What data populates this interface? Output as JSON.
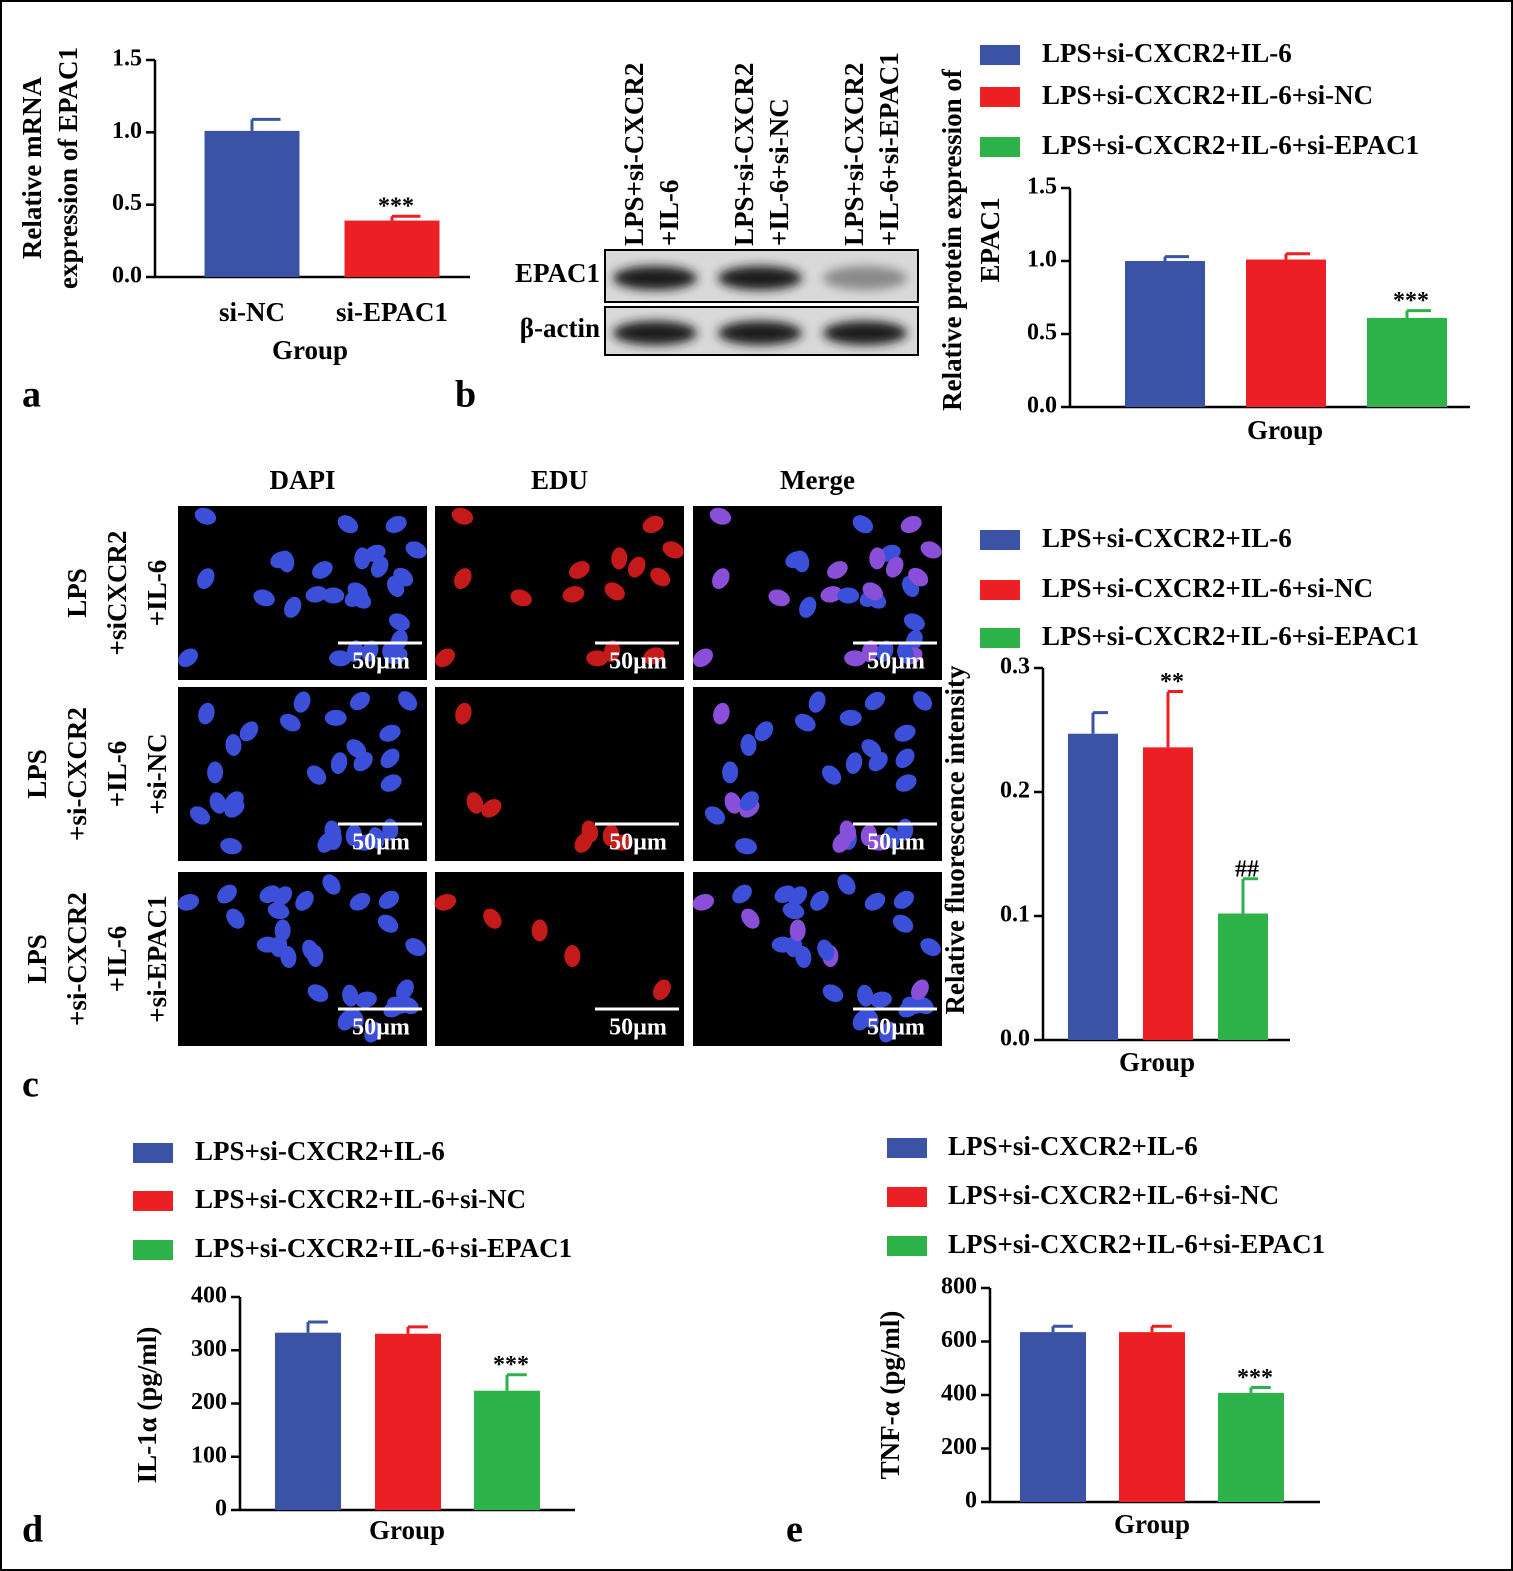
{
  "panel_labels": [
    "a",
    "b",
    "c",
    "d",
    "e"
  ],
  "blot": {
    "lanes": [
      [
        "LPS+si-CXCR2",
        "+IL-6"
      ],
      [
        "LPS+si-CXCR2",
        "+IL-6+si-NC"
      ],
      [
        "LPS+si-CXCR2",
        "+IL-6+si-EPAC1"
      ]
    ],
    "rows": [
      "EPAC1",
      "β-actin"
    ]
  },
  "micrographs": {
    "columns": [
      "DAPI",
      "EDU",
      "Merge"
    ],
    "rows": [
      [
        "LPS",
        "+siCXCR2",
        "+IL-6"
      ],
      [
        "LPS",
        "+si-CXCR2",
        "+IL-6",
        "+si-NC"
      ],
      [
        "LPS",
        "+si-CXCR2",
        "+IL-6",
        "+si-EPAC1"
      ]
    ],
    "scale_bar": "50µm"
  },
  "chart_data": [
    {
      "type": "bar",
      "ylabel": [
        "Relative mRNA",
        "expression of EPAC1"
      ],
      "xlabel": "Group",
      "categories": [
        "si-NC",
        "si-EPAC1"
      ],
      "values": [
        1.01,
        0.39
      ],
      "errors": [
        0.08,
        0.03
      ],
      "annotations": [
        null,
        "***"
      ],
      "colors": [
        "#3a53a4",
        "#ec1f24"
      ],
      "ylim": [
        0,
        1.5
      ],
      "yticks": [
        {
          "value": 0,
          "label": "0.0"
        },
        0.5,
        {
          "value": 1,
          "label": "1.0"
        },
        1.5
      ]
    },
    {
      "type": "bar",
      "ylabel": [
        "Relative protein expression of",
        "EPAC1"
      ],
      "xlabel": "Group",
      "categories": [
        null
      ],
      "series": [
        {
          "name": "LPS+si-CXCR2+IL-6",
          "color": "#3a53a4",
          "values": [
            1.0
          ],
          "errors": [
            0.03
          ]
        },
        {
          "name": "LPS+si-CXCR2+IL-6+si-NC",
          "color": "#ec1f24",
          "values": [
            1.01
          ],
          "errors": [
            0.04
          ]
        },
        {
          "name": "LPS+si-CXCR2+IL-6+si-EPAC1",
          "color": "#2db34a",
          "values": [
            0.61
          ],
          "errors": [
            0.05
          ],
          "annotations": [
            "***"
          ]
        }
      ],
      "ylim": [
        0,
        1.5
      ],
      "yticks": [
        {
          "value": 0,
          "label": "0.0"
        },
        0.5,
        {
          "value": 1,
          "label": "1.0"
        },
        1.5
      ]
    },
    {
      "type": "bar",
      "ylabel": [
        "Relative fluorescence intensity"
      ],
      "xlabel": "Group",
      "categories": [
        null
      ],
      "series": [
        {
          "name": "LPS+si-CXCR2+IL-6",
          "color": "#3a53a4",
          "values": [
            0.247
          ],
          "errors": [
            0.017
          ]
        },
        {
          "name": "LPS+si-CXCR2+IL-6+si-NC",
          "color": "#ec1f24",
          "values": [
            0.236
          ],
          "errors": [
            0.045
          ],
          "annotations": [
            "**"
          ]
        },
        {
          "name": "LPS+si-CXCR2+IL-6+si-EPAC1",
          "color": "#2db34a",
          "values": [
            0.102
          ],
          "errors": [
            0.028
          ],
          "annotations": [
            "##"
          ]
        }
      ],
      "ylim": [
        0,
        0.3
      ],
      "yticks": [
        {
          "value": 0,
          "label": "0.0"
        },
        0.1,
        0.2,
        0.3
      ]
    },
    {
      "type": "bar",
      "ylabel": [
        "IL-1α (pg/ml)"
      ],
      "xlabel": "Group",
      "categories": [
        null
      ],
      "series": [
        {
          "name": "LPS+si-CXCR2+IL-6",
          "color": "#3a53a4",
          "values": [
            333
          ],
          "errors": [
            20
          ]
        },
        {
          "name": "LPS+si-CXCR2+IL-6+si-NC",
          "color": "#ec1f24",
          "values": [
            331
          ],
          "errors": [
            13
          ]
        },
        {
          "name": "LPS+si-CXCR2+IL-6+si-EPAC1",
          "color": "#2db34a",
          "values": [
            224
          ],
          "errors": [
            30
          ],
          "annotations": [
            "***"
          ]
        }
      ],
      "ylim": [
        0,
        400
      ],
      "yticks": [
        0,
        100,
        200,
        300,
        400
      ]
    },
    {
      "type": "bar",
      "ylabel": [
        "TNF-α (pg/ml)"
      ],
      "xlabel": "Group",
      "categories": [
        null
      ],
      "series": [
        {
          "name": "LPS+si-CXCR2+IL-6",
          "color": "#3a53a4",
          "values": [
            635
          ],
          "errors": [
            22
          ]
        },
        {
          "name": "LPS+si-CXCR2+IL-6+si-NC",
          "color": "#ec1f24",
          "values": [
            635
          ],
          "errors": [
            22
          ]
        },
        {
          "name": "LPS+si-CXCR2+IL-6+si-EPAC1",
          "color": "#2db34a",
          "values": [
            408
          ],
          "errors": [
            20
          ],
          "annotations": [
            "***"
          ]
        }
      ],
      "ylim": [
        0,
        800
      ],
      "yticks": [
        0,
        200,
        400,
        600,
        800
      ]
    }
  ]
}
